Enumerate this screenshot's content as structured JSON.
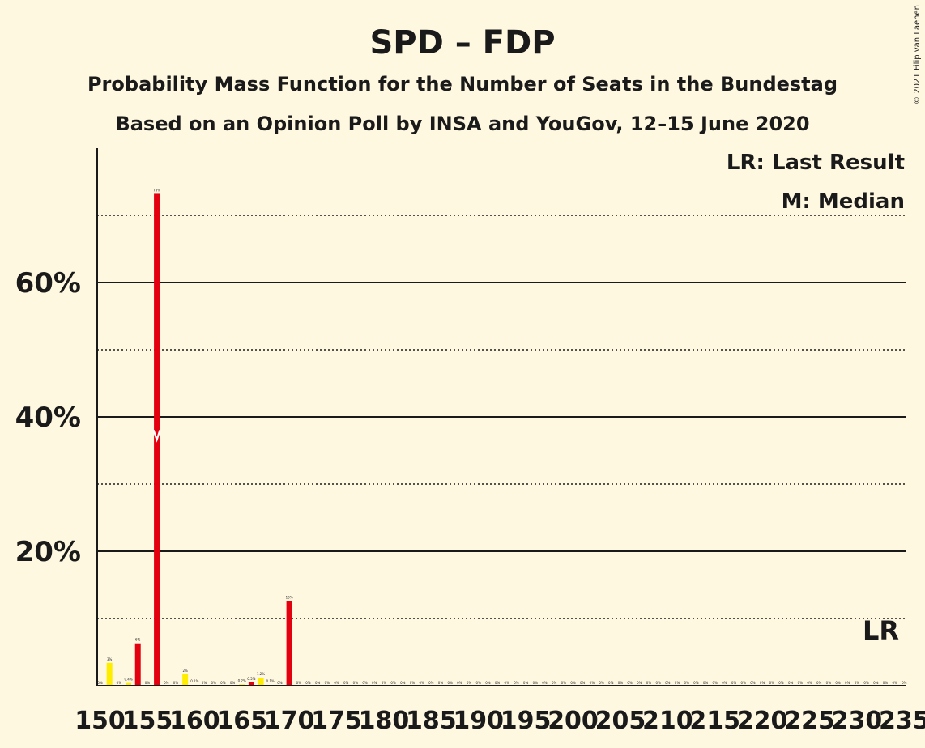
{
  "colors": {
    "background": "#fff8e1",
    "spd": "#e3000f",
    "fdp": "#ffed00",
    "median_marker": "#ffffff",
    "text": "#1a1a1a"
  },
  "chart_data": {
    "type": "bar",
    "title": "SPD – FDP",
    "subtitle": "Probability Mass Function for the Number of Seats in the Bundestag",
    "subtitle2": "Based on an Opinion Poll by INSA and YouGov, 12–15 June 2020",
    "copyright": "© 2021 Filip van Laenen",
    "legend": {
      "lr": "LR: Last Result",
      "m": "M: Median",
      "placement": "top-right"
    },
    "last_result_label": "LR",
    "last_result_seats": 232,
    "median_seats": 156,
    "xlim": [
      150,
      235
    ],
    "ylim": [
      0,
      80
    ],
    "y_ticks": [
      {
        "value": 20,
        "label": "20%"
      },
      {
        "value": 40,
        "label": "40%"
      },
      {
        "value": 60,
        "label": "60%"
      }
    ],
    "x_ticks": [
      {
        "value": 150,
        "label": "150"
      },
      {
        "value": 155,
        "label": "155"
      },
      {
        "value": 160,
        "label": "160"
      },
      {
        "value": 165,
        "label": "165"
      },
      {
        "value": 170,
        "label": "170"
      },
      {
        "value": 175,
        "label": "175"
      },
      {
        "value": 180,
        "label": "180"
      },
      {
        "value": 185,
        "label": "185"
      },
      {
        "value": 190,
        "label": "190"
      },
      {
        "value": 195,
        "label": "195"
      },
      {
        "value": 200,
        "label": "200"
      },
      {
        "value": 205,
        "label": "205"
      },
      {
        "value": 210,
        "label": "210"
      },
      {
        "value": 215,
        "label": "215"
      },
      {
        "value": 220,
        "label": "220"
      },
      {
        "value": 225,
        "label": "225"
      },
      {
        "value": 230,
        "label": "230"
      },
      {
        "value": 235,
        "label": "235"
      }
    ],
    "grid_solid": [
      20,
      40,
      60
    ],
    "grid_dotted": [
      10,
      30,
      50,
      70
    ],
    "bars": [
      {
        "seats": 150,
        "value": 0,
        "label": "0%",
        "color": "fdp"
      },
      {
        "seats": 151,
        "value": 3.4,
        "label": "3%",
        "color": "fdp"
      },
      {
        "seats": 152,
        "value": 0,
        "label": "0%",
        "color": "fdp"
      },
      {
        "seats": 153,
        "value": 0.4,
        "label": "0.4%",
        "color": "fdp"
      },
      {
        "seats": 154,
        "value": 6.3,
        "label": "6%",
        "color": "spd"
      },
      {
        "seats": 155,
        "value": 0,
        "label": "0%",
        "color": "fdp"
      },
      {
        "seats": 156,
        "value": 73.2,
        "label": "73%",
        "color": "spd"
      },
      {
        "seats": 157,
        "value": 0,
        "label": "0%",
        "color": "fdp"
      },
      {
        "seats": 158,
        "value": 0,
        "label": "0%",
        "color": "fdp"
      },
      {
        "seats": 159,
        "value": 1.7,
        "label": "2%",
        "color": "fdp"
      },
      {
        "seats": 160,
        "value": 0.1,
        "label": "0.1%",
        "color": "fdp"
      },
      {
        "seats": 161,
        "value": 0,
        "label": "0%",
        "color": "fdp"
      },
      {
        "seats": 162,
        "value": 0,
        "label": "0%",
        "color": "fdp"
      },
      {
        "seats": 163,
        "value": 0,
        "label": "0%",
        "color": "fdp"
      },
      {
        "seats": 164,
        "value": 0,
        "label": "0%",
        "color": "fdp"
      },
      {
        "seats": 165,
        "value": 0.2,
        "label": "0.2%",
        "color": "fdp"
      },
      {
        "seats": 166,
        "value": 0.5,
        "label": "0.5%",
        "color": "spd"
      },
      {
        "seats": 167,
        "value": 1.2,
        "label": "1.2%",
        "color": "fdp"
      },
      {
        "seats": 168,
        "value": 0.1,
        "label": "0.1%",
        "color": "fdp"
      },
      {
        "seats": 169,
        "value": 0,
        "label": "0%",
        "color": "fdp"
      },
      {
        "seats": 170,
        "value": 12.6,
        "label": "13%",
        "color": "spd"
      },
      {
        "seats": 171,
        "value": 0,
        "label": "0%",
        "color": "fdp"
      },
      {
        "seats": 172,
        "value": 0,
        "label": "0%",
        "color": "fdp"
      },
      {
        "seats": 173,
        "value": 0,
        "label": "0%",
        "color": "fdp"
      },
      {
        "seats": 174,
        "value": 0,
        "label": "0%",
        "color": "fdp"
      },
      {
        "seats": 175,
        "value": 0,
        "label": "0%",
        "color": "fdp"
      },
      {
        "seats": 176,
        "value": 0,
        "label": "0%",
        "color": "fdp"
      },
      {
        "seats": 177,
        "value": 0,
        "label": "0%",
        "color": "fdp"
      },
      {
        "seats": 178,
        "value": 0,
        "label": "0%",
        "color": "fdp"
      },
      {
        "seats": 179,
        "value": 0,
        "label": "0%",
        "color": "fdp"
      },
      {
        "seats": 180,
        "value": 0,
        "label": "0%",
        "color": "fdp"
      },
      {
        "seats": 181,
        "value": 0,
        "label": "0%",
        "color": "fdp"
      },
      {
        "seats": 182,
        "value": 0,
        "label": "0%",
        "color": "fdp"
      },
      {
        "seats": 183,
        "value": 0,
        "label": "0%",
        "color": "fdp"
      },
      {
        "seats": 184,
        "value": 0,
        "label": "0%",
        "color": "fdp"
      },
      {
        "seats": 185,
        "value": 0,
        "label": "0%",
        "color": "fdp"
      },
      {
        "seats": 186,
        "value": 0,
        "label": "0%",
        "color": "fdp"
      },
      {
        "seats": 187,
        "value": 0,
        "label": "0%",
        "color": "fdp"
      },
      {
        "seats": 188,
        "value": 0,
        "label": "0%",
        "color": "fdp"
      },
      {
        "seats": 189,
        "value": 0,
        "label": "0%",
        "color": "fdp"
      },
      {
        "seats": 190,
        "value": 0,
        "label": "0%",
        "color": "fdp"
      },
      {
        "seats": 191,
        "value": 0,
        "label": "0%",
        "color": "fdp"
      },
      {
        "seats": 192,
        "value": 0,
        "label": "0%",
        "color": "fdp"
      },
      {
        "seats": 193,
        "value": 0,
        "label": "0%",
        "color": "fdp"
      },
      {
        "seats": 194,
        "value": 0,
        "label": "0%",
        "color": "fdp"
      },
      {
        "seats": 195,
        "value": 0,
        "label": "0%",
        "color": "fdp"
      },
      {
        "seats": 196,
        "value": 0,
        "label": "0%",
        "color": "fdp"
      },
      {
        "seats": 197,
        "value": 0,
        "label": "0%",
        "color": "fdp"
      },
      {
        "seats": 198,
        "value": 0,
        "label": "0%",
        "color": "fdp"
      },
      {
        "seats": 199,
        "value": 0,
        "label": "0%",
        "color": "fdp"
      },
      {
        "seats": 200,
        "value": 0,
        "label": "0%",
        "color": "fdp"
      },
      {
        "seats": 201,
        "value": 0,
        "label": "0%",
        "color": "fdp"
      },
      {
        "seats": 202,
        "value": 0,
        "label": "0%",
        "color": "fdp"
      },
      {
        "seats": 203,
        "value": 0,
        "label": "0%",
        "color": "fdp"
      },
      {
        "seats": 204,
        "value": 0,
        "label": "0%",
        "color": "fdp"
      },
      {
        "seats": 205,
        "value": 0,
        "label": "0%",
        "color": "fdp"
      },
      {
        "seats": 206,
        "value": 0,
        "label": "0%",
        "color": "fdp"
      },
      {
        "seats": 207,
        "value": 0,
        "label": "0%",
        "color": "fdp"
      },
      {
        "seats": 208,
        "value": 0,
        "label": "0%",
        "color": "fdp"
      },
      {
        "seats": 209,
        "value": 0,
        "label": "0%",
        "color": "fdp"
      },
      {
        "seats": 210,
        "value": 0,
        "label": "0%",
        "color": "fdp"
      },
      {
        "seats": 211,
        "value": 0,
        "label": "0%",
        "color": "fdp"
      },
      {
        "seats": 212,
        "value": 0,
        "label": "0%",
        "color": "fdp"
      },
      {
        "seats": 213,
        "value": 0,
        "label": "0%",
        "color": "fdp"
      },
      {
        "seats": 214,
        "value": 0,
        "label": "0%",
        "color": "fdp"
      },
      {
        "seats": 215,
        "value": 0,
        "label": "0%",
        "color": "fdp"
      },
      {
        "seats": 216,
        "value": 0,
        "label": "0%",
        "color": "fdp"
      },
      {
        "seats": 217,
        "value": 0,
        "label": "0%",
        "color": "fdp"
      },
      {
        "seats": 218,
        "value": 0,
        "label": "0%",
        "color": "fdp"
      },
      {
        "seats": 219,
        "value": 0,
        "label": "0%",
        "color": "fdp"
      },
      {
        "seats": 220,
        "value": 0,
        "label": "0%",
        "color": "fdp"
      },
      {
        "seats": 221,
        "value": 0,
        "label": "0%",
        "color": "fdp"
      },
      {
        "seats": 222,
        "value": 0,
        "label": "0%",
        "color": "fdp"
      },
      {
        "seats": 223,
        "value": 0,
        "label": "0%",
        "color": "fdp"
      },
      {
        "seats": 224,
        "value": 0,
        "label": "0%",
        "color": "fdp"
      },
      {
        "seats": 225,
        "value": 0,
        "label": "0%",
        "color": "fdp"
      },
      {
        "seats": 226,
        "value": 0,
        "label": "0%",
        "color": "fdp"
      },
      {
        "seats": 227,
        "value": 0,
        "label": "0%",
        "color": "fdp"
      },
      {
        "seats": 228,
        "value": 0,
        "label": "0%",
        "color": "fdp"
      },
      {
        "seats": 229,
        "value": 0,
        "label": "0%",
        "color": "fdp"
      },
      {
        "seats": 230,
        "value": 0,
        "label": "0%",
        "color": "fdp"
      },
      {
        "seats": 231,
        "value": 0,
        "label": "0%",
        "color": "fdp"
      },
      {
        "seats": 232,
        "value": 0,
        "label": "0%",
        "color": "fdp"
      },
      {
        "seats": 233,
        "value": 0,
        "label": "0%",
        "color": "fdp"
      },
      {
        "seats": 234,
        "value": 0,
        "label": "0%",
        "color": "fdp"
      },
      {
        "seats": 235,
        "value": 0,
        "label": "0%",
        "color": "fdp"
      }
    ]
  }
}
